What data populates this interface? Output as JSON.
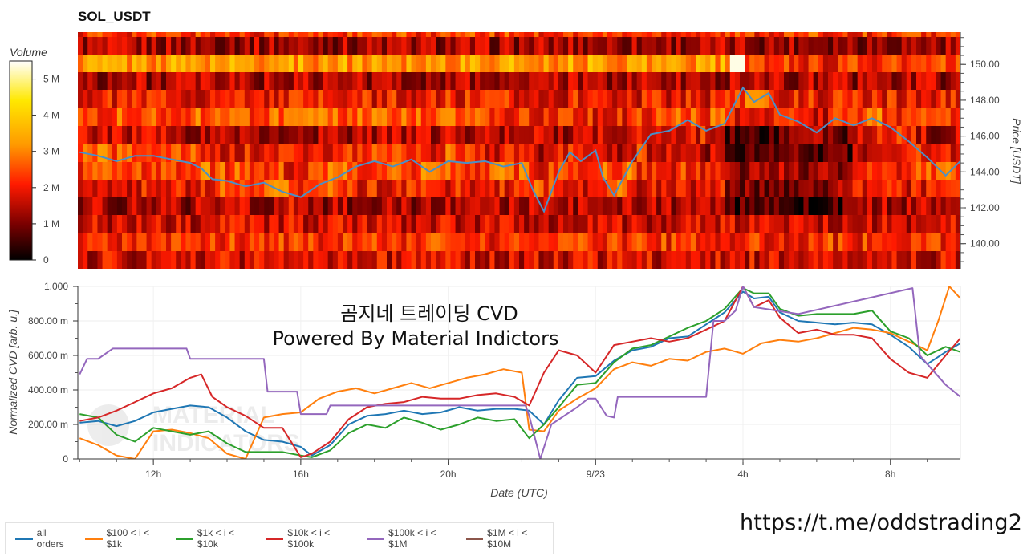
{
  "title": "SOL_USDT",
  "colorbar": {
    "title": "Volume",
    "ticks": [
      "0",
      "1 M",
      "2 M",
      "3 M",
      "4 M",
      "5 M"
    ],
    "tick_values": [
      0,
      1,
      2,
      3,
      4,
      5
    ],
    "max": 5.5
  },
  "price_axis": {
    "label": "Price [USDT]",
    "ticks": [
      "140.00",
      "142.00",
      "144.00",
      "146.00",
      "148.00",
      "150.00"
    ],
    "tick_values": [
      140,
      142,
      144,
      146,
      148,
      150
    ],
    "range": [
      138.6,
      151.8
    ]
  },
  "cvd_axis": {
    "label": "Normalized CVD [arb. u.]",
    "ticks": [
      "0",
      "200.00 m",
      "400.00 m",
      "600.00 m",
      "800.00 m",
      "1.000"
    ],
    "tick_values": [
      0,
      0.2,
      0.4,
      0.6,
      0.8,
      1.0
    ],
    "range": [
      0,
      1
    ]
  },
  "time_axis": {
    "label": "Date (UTC)",
    "ticks": [
      "12h",
      "16h",
      "20h",
      "9/23",
      "4h",
      "8h"
    ],
    "tick_values": [
      12,
      16,
      20,
      24,
      28,
      32
    ],
    "range": [
      9.95,
      33.9
    ]
  },
  "annotation": {
    "line1": "곰지네 트레이딩 CVD",
    "line2": "Powered By Material Indictors"
  },
  "watermark": "MATERIAL INDICATORS",
  "link": "https://t.me/oddstrading2",
  "legend": [
    {
      "label": "all orders",
      "color": "#1f77b4"
    },
    {
      "label": "$100 < i < $1k",
      "color": "#ff7f0e"
    },
    {
      "label": "$1k < i < $10k",
      "color": "#2ca02c"
    },
    {
      "label": "$10k < i < $100k",
      "color": "#d62728"
    },
    {
      "label": "$100k < i < $1M",
      "color": "#9467bd"
    },
    {
      "label": "$1M < i < $10M",
      "color": "#8c564b"
    }
  ],
  "chart_data": [
    {
      "type": "heatmap",
      "title": "SOL_USDT",
      "ylabel": "Price [USDT]",
      "colorbar_label": "Volume",
      "price_series": {
        "name": "price",
        "color": "#4a90c8",
        "x": [
          10.0,
          10.5,
          11.0,
          11.5,
          12.0,
          12.5,
          13.0,
          13.3,
          13.6,
          14.0,
          14.5,
          15.0,
          15.5,
          16.0,
          16.5,
          17.0,
          17.5,
          18.0,
          18.5,
          19.0,
          19.5,
          20.0,
          20.5,
          21.0,
          21.5,
          22.0,
          22.3,
          22.6,
          23.0,
          23.3,
          23.6,
          24.0,
          24.2,
          24.5,
          25.0,
          25.5,
          26.0,
          26.5,
          27.0,
          27.5,
          28.0,
          28.3,
          28.7,
          29.0,
          29.5,
          30.0,
          30.5,
          31.0,
          31.5,
          32.0,
          32.5,
          33.0,
          33.5,
          33.9
        ],
        "y": [
          145.1,
          144.9,
          144.6,
          144.9,
          144.9,
          144.7,
          144.5,
          144.2,
          143.6,
          143.5,
          143.2,
          143.4,
          142.9,
          142.6,
          143.3,
          143.7,
          144.3,
          144.6,
          144.3,
          144.7,
          144.0,
          144.6,
          144.5,
          144.6,
          144.3,
          144.5,
          143.0,
          141.8,
          144.0,
          145.1,
          144.6,
          145.2,
          143.7,
          142.7,
          144.6,
          146.1,
          146.3,
          146.9,
          146.3,
          146.7,
          148.7,
          147.9,
          148.4,
          147.2,
          146.8,
          146.2,
          147.0,
          146.6,
          147.0,
          146.5,
          145.7,
          144.8,
          143.8,
          144.6
        ]
      }
    },
    {
      "type": "line",
      "xlabel": "Date (UTC)",
      "ylabel": "Normalized CVD [arb. u.]",
      "ylim": [
        0,
        1
      ],
      "series": [
        {
          "name": "all orders",
          "color": "#1f77b4",
          "x": [
            10.0,
            10.5,
            11.0,
            11.5,
            12.0,
            12.5,
            13.0,
            13.5,
            14.0,
            14.5,
            15.0,
            15.5,
            16.0,
            16.3,
            16.8,
            17.3,
            17.8,
            18.3,
            18.8,
            19.3,
            19.8,
            20.3,
            20.8,
            21.3,
            21.8,
            22.2,
            22.6,
            23.0,
            23.5,
            24.0,
            24.5,
            25.0,
            25.5,
            26.0,
            26.5,
            27.0,
            27.5,
            28.0,
            28.3,
            28.7,
            29.0,
            29.5,
            30.0,
            30.5,
            31.0,
            31.5,
            32.0,
            32.5,
            33.0,
            33.5,
            33.9
          ],
          "y": [
            0.21,
            0.22,
            0.19,
            0.22,
            0.27,
            0.29,
            0.31,
            0.3,
            0.24,
            0.16,
            0.11,
            0.1,
            0.07,
            0.02,
            0.08,
            0.2,
            0.25,
            0.26,
            0.28,
            0.26,
            0.27,
            0.3,
            0.28,
            0.29,
            0.29,
            0.28,
            0.2,
            0.34,
            0.47,
            0.48,
            0.57,
            0.63,
            0.65,
            0.7,
            0.71,
            0.78,
            0.85,
            0.97,
            0.93,
            0.94,
            0.85,
            0.8,
            0.79,
            0.78,
            0.79,
            0.78,
            0.72,
            0.65,
            0.55,
            0.62,
            0.67
          ]
        },
        {
          "name": "$100 < i < $1k",
          "color": "#ff7f0e",
          "x": [
            10.0,
            10.5,
            11.0,
            11.5,
            12.0,
            12.5,
            13.0,
            13.5,
            14.0,
            14.5,
            15.0,
            15.5,
            16.0,
            16.5,
            17.0,
            17.5,
            18.0,
            18.5,
            19.0,
            19.5,
            20.0,
            20.5,
            21.0,
            21.5,
            22.0,
            22.2,
            22.6,
            23.0,
            23.5,
            24.0,
            24.5,
            25.0,
            25.5,
            26.0,
            26.5,
            27.0,
            27.5,
            28.0,
            28.5,
            29.0,
            29.5,
            30.0,
            30.5,
            31.0,
            31.5,
            32.0,
            32.5,
            33.0,
            33.3,
            33.6,
            33.9
          ],
          "y": [
            0.12,
            0.08,
            0.02,
            0.0,
            0.16,
            0.17,
            0.15,
            0.12,
            0.03,
            0.0,
            0.24,
            0.26,
            0.27,
            0.35,
            0.39,
            0.41,
            0.38,
            0.41,
            0.44,
            0.41,
            0.44,
            0.47,
            0.49,
            0.52,
            0.5,
            0.17,
            0.16,
            0.28,
            0.35,
            0.41,
            0.52,
            0.56,
            0.54,
            0.58,
            0.57,
            0.62,
            0.64,
            0.61,
            0.67,
            0.69,
            0.68,
            0.7,
            0.73,
            0.76,
            0.75,
            0.73,
            0.68,
            0.63,
            0.8,
            1.0,
            0.93
          ]
        },
        {
          "name": "$1k < i < $10k",
          "color": "#2ca02c",
          "x": [
            10.0,
            10.5,
            11.0,
            11.5,
            12.0,
            12.5,
            13.0,
            13.5,
            14.0,
            14.5,
            15.0,
            15.5,
            16.0,
            16.3,
            16.8,
            17.3,
            17.8,
            18.3,
            18.8,
            19.3,
            19.8,
            20.3,
            20.8,
            21.3,
            21.8,
            22.2,
            22.6,
            23.0,
            23.5,
            24.0,
            24.5,
            25.0,
            25.5,
            26.0,
            26.5,
            27.0,
            27.5,
            28.0,
            28.3,
            28.7,
            29.0,
            29.5,
            30.0,
            30.5,
            31.0,
            31.5,
            32.0,
            32.5,
            33.0,
            33.5,
            33.9
          ],
          "y": [
            0.26,
            0.24,
            0.14,
            0.1,
            0.18,
            0.16,
            0.14,
            0.16,
            0.09,
            0.04,
            0.04,
            0.04,
            0.02,
            0.01,
            0.05,
            0.15,
            0.2,
            0.18,
            0.24,
            0.21,
            0.17,
            0.2,
            0.24,
            0.22,
            0.23,
            0.12,
            0.2,
            0.3,
            0.43,
            0.44,
            0.56,
            0.64,
            0.66,
            0.71,
            0.76,
            0.8,
            0.87,
            0.99,
            0.96,
            0.96,
            0.87,
            0.83,
            0.84,
            0.84,
            0.84,
            0.86,
            0.74,
            0.7,
            0.6,
            0.65,
            0.62
          ]
        },
        {
          "name": "$10k < i < $100k",
          "color": "#d62728",
          "x": [
            10.0,
            10.5,
            11.0,
            11.5,
            12.0,
            12.5,
            13.0,
            13.3,
            13.6,
            14.0,
            14.5,
            15.0,
            15.5,
            16.0,
            16.3,
            16.8,
            17.3,
            17.8,
            18.3,
            18.8,
            19.3,
            19.8,
            20.3,
            20.8,
            21.3,
            21.8,
            22.2,
            22.6,
            23.0,
            23.5,
            24.0,
            24.5,
            25.0,
            25.5,
            26.0,
            26.5,
            27.0,
            27.5,
            28.0,
            28.3,
            28.7,
            29.0,
            29.5,
            30.0,
            30.5,
            31.0,
            31.5,
            32.0,
            32.5,
            33.0,
            33.5,
            33.9
          ],
          "y": [
            0.22,
            0.24,
            0.28,
            0.33,
            0.38,
            0.41,
            0.47,
            0.49,
            0.36,
            0.3,
            0.25,
            0.18,
            0.18,
            0.01,
            0.03,
            0.1,
            0.23,
            0.3,
            0.32,
            0.33,
            0.36,
            0.35,
            0.35,
            0.37,
            0.38,
            0.36,
            0.31,
            0.5,
            0.63,
            0.6,
            0.5,
            0.66,
            0.68,
            0.7,
            0.68,
            0.7,
            0.75,
            0.8,
            1.0,
            0.88,
            0.92,
            0.82,
            0.73,
            0.75,
            0.72,
            0.72,
            0.7,
            0.58,
            0.5,
            0.47,
            0.6,
            0.7
          ]
        },
        {
          "name": "$100k < i < $1M",
          "color": "#9467bd",
          "x": [
            10.0,
            10.2,
            10.5,
            10.9,
            12.9,
            13.0,
            15.0,
            15.1,
            15.9,
            16.0,
            16.7,
            16.8,
            22.1,
            22.2,
            22.5,
            22.8,
            23.5,
            23.8,
            24.0,
            24.3,
            24.5,
            24.6,
            27.0,
            27.2,
            27.5,
            27.8,
            28.0,
            28.3,
            29.5,
            32.6,
            32.8,
            33.0,
            33.5,
            33.9
          ],
          "y": [
            0.49,
            0.58,
            0.58,
            0.64,
            0.64,
            0.58,
            0.58,
            0.39,
            0.39,
            0.26,
            0.26,
            0.31,
            0.31,
            0.25,
            0.0,
            0.2,
            0.3,
            0.35,
            0.35,
            0.25,
            0.24,
            0.36,
            0.36,
            0.8,
            0.8,
            0.86,
            1.0,
            0.88,
            0.84,
            0.99,
            0.6,
            0.55,
            0.43,
            0.36
          ]
        },
        {
          "name": "$1M < i < $10M",
          "color": "#8c564b",
          "x": [],
          "y": []
        }
      ]
    }
  ]
}
